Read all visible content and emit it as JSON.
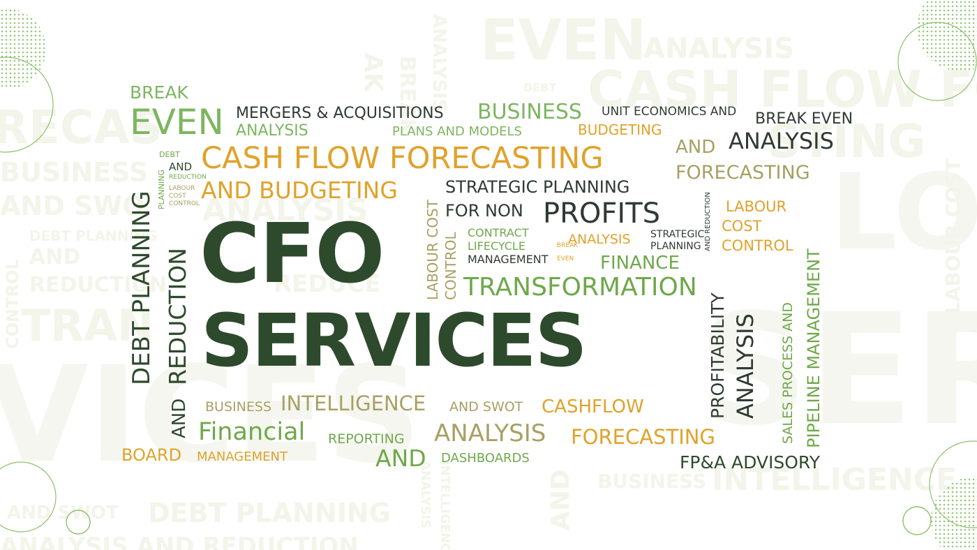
{
  "colors": {
    "dark_green": "#2e4a2c",
    "dark_grey": "#2f3a33",
    "green": "#6fa84a",
    "light_green": "#7db661",
    "gold": "#e0a22a",
    "olive": "#a8a064",
    "watermark": "#f3f4ea"
  },
  "watermark": {
    "even": "EVEN",
    "analysis_top": "ANALYSIS",
    "cash_flow": "CASH FLOW FO",
    "debt": "DEBT",
    "recast": "RECAS",
    "business": "BUSINESS",
    "and_swo": "AND SWO",
    "debt_planning": "DEBT PLANNING",
    "and": "AND",
    "reduction": "REDUCTION",
    "tran": "TRAN",
    "control": "CONTROL",
    "vices": "VICES",
    "serv": "SERV",
    "sting": "STING",
    "lo": "LO",
    "labour_cost": "LABOUR COST",
    "business_bottom": "BUSINESS",
    "intelligence": "INTELLIGENCE",
    "and_swot": "AND SWOT",
    "debt_planning_bottom": "DEBT PLANNING",
    "analysis_bottom": "ANALYSIS  AND REDUCTION",
    "and_vertical": "AND",
    "analysis_vertical": "ANALYSIS",
    "intelligence_vertical": "INTELLIGENCE",
    "ak": "AK",
    "break": "BREAK",
    "analysis_vertical_top": "ANALYSIS",
    "analysis_middle": "ANALYSIS",
    "reduce": "REDUCE"
  },
  "cloud": {
    "title_line1": "CFO",
    "title_line2": "SERVICES",
    "break": "BREAK",
    "even": "EVEN",
    "analysis_1": "ANALYSIS",
    "mergers": "MERGERS & ACQUISITIONS",
    "business": "BUSINESS",
    "plans_models": "PLANS AND MODELS",
    "unit_economics": "UNIT ECONOMICS AND",
    "break_even": "BREAK EVEN",
    "budgeting_1": "BUDGETING",
    "and_1": "AND",
    "analysis_2": "ANALYSIS",
    "forecasting_1": "FORECASTING",
    "cash_flow_forecasting": "CASH FLOW FORECASTING",
    "and_budgeting": "AND BUDGETING",
    "debt_small": "DEBT",
    "and_small": "AND",
    "planning_small": "PLANNING",
    "reduction_small": "REDUCTION",
    "labour_small": "LABOUR",
    "cost_small": "COST",
    "control_small": "CONTROL",
    "debt_planning": "DEBT PLANNING",
    "reduction": "REDUCTION",
    "and_vertical": "AND",
    "strategic_planning": "STRATEGIC PLANNING",
    "for_non": "FOR NON",
    "profits": "PROFITS",
    "labour_cost_v": "LABOUR COST",
    "control_v": "CONTROL",
    "contract": "CONTRACT",
    "lifecycle": "LIFECYCLE",
    "management_1": "MANAGEMENT",
    "break_v": "BREAK",
    "even_v": "EVEN",
    "analysis_3": "ANALYSIS",
    "strategic": "STRATEGIC",
    "planning": "PLANNING",
    "and_reduction_v": "AND REDUCTION",
    "labour": "LABOUR",
    "cost": "COST",
    "control": "CONTROL",
    "finance": "FINANCE",
    "transformation": "TRANSFORMATION",
    "profitability": "PROFITABILITY",
    "analysis_v": "ANALYSIS",
    "sales_process": "SALES PROCESS AND",
    "pipeline_management": "PIPELINE MANAGEMENT",
    "business_2": "BUSINESS",
    "intelligence": "INTELLIGENCE",
    "and_swot": "AND SWOT",
    "cashflow": "CASHFLOW",
    "financial": "Financial",
    "reporting": "REPORTING",
    "analysis_4": "ANALYSIS",
    "forecasting_2": "FORECASTING",
    "board": "BOARD",
    "management_2": "MANAGEMENT",
    "and_2": "AND",
    "dashboards": "DASHBOARDS",
    "fpa_advisory": "FP&A ADVISORY"
  }
}
